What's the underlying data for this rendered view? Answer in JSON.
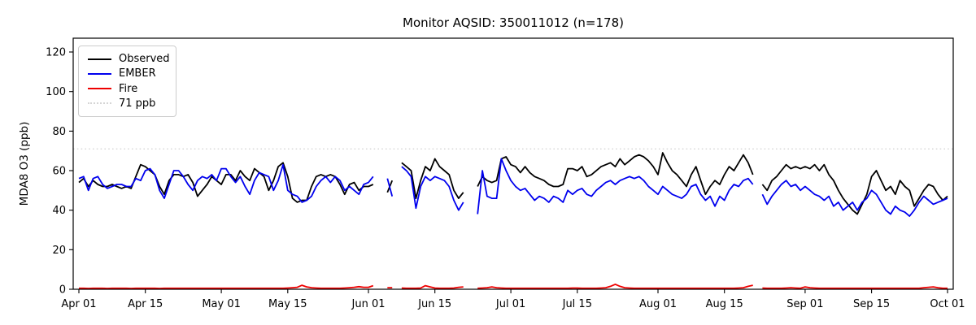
{
  "title": "Monitor AQSID: 350011012 (n=178)",
  "axes": {
    "ylabel": "MDA8 O3 (ppb)"
  },
  "legend": {
    "items": [
      {
        "label": "Observed",
        "color": "#000000",
        "style": "solid"
      },
      {
        "label": "EMBER",
        "color": "#0000ee",
        "style": "solid"
      },
      {
        "label": "Fire",
        "color": "#ee0000",
        "style": "solid"
      },
      {
        "label": "71 ppb",
        "color": "#d5d5d5",
        "style": "dotted"
      }
    ]
  },
  "chart_data": {
    "type": "line",
    "title": "Monitor AQSID: 350011012 (n=178)",
    "xlabel": "",
    "ylabel": "MDA8 O3 (ppb)",
    "x_start": "Apr 01",
    "x_end": "Oct 01",
    "x_unit": "day",
    "x_days_total": 183,
    "ylim": [
      0,
      127
    ],
    "y_ticks": [
      0,
      20,
      40,
      60,
      80,
      100,
      120
    ],
    "x_tick_labels": [
      "Apr 01",
      "Apr 15",
      "May 01",
      "May 15",
      "Jun 01",
      "Jun 15",
      "Jul 01",
      "Jul 15",
      "Aug 01",
      "Aug 15",
      "Sep 01",
      "Sep 15",
      "Oct 01"
    ],
    "x_tick_days": [
      0,
      14,
      30,
      44,
      61,
      75,
      91,
      105,
      122,
      136,
      153,
      167,
      183
    ],
    "threshold": {
      "label": "71 ppb",
      "value": 71,
      "color": "#d5d5d5",
      "style": "dotted"
    },
    "grid": false,
    "legend_position": "upper left",
    "series": [
      {
        "name": "Observed",
        "color": "#000000",
        "values": [
          54,
          56,
          52,
          55,
          53,
          52,
          52,
          53,
          52,
          51,
          52,
          51,
          57,
          63,
          62,
          60,
          58,
          52,
          48,
          55,
          58,
          58,
          57,
          58,
          54,
          47,
          50,
          53,
          57,
          55,
          53,
          58,
          58,
          55,
          60,
          57,
          55,
          61,
          59,
          57,
          50,
          55,
          62,
          64,
          57,
          46,
          44,
          45,
          45,
          52,
          57,
          58,
          57,
          58,
          57,
          53,
          48,
          53,
          54,
          50,
          52,
          52,
          53,
          null,
          null,
          49,
          55,
          null,
          64,
          62,
          60,
          46,
          55,
          62,
          60,
          66,
          62,
          60,
          58,
          50,
          46,
          49,
          null,
          null,
          52,
          57,
          55,
          54,
          55,
          66,
          67,
          63,
          62,
          59,
          62,
          59,
          57,
          56,
          55,
          53,
          52,
          52,
          53,
          61,
          61,
          60,
          62,
          57,
          58,
          60,
          62,
          63,
          64,
          62,
          66,
          63,
          65,
          67,
          68,
          67,
          65,
          62,
          58,
          69,
          64,
          60,
          58,
          55,
          52,
          58,
          62,
          55,
          48,
          52,
          55,
          53,
          58,
          62,
          60,
          64,
          68,
          64,
          58,
          null,
          53,
          50,
          55,
          57,
          60,
          63,
          61,
          62,
          61,
          62,
          61,
          63,
          60,
          63,
          58,
          55,
          50,
          46,
          43,
          40,
          38,
          43,
          48,
          57,
          60,
          55,
          50,
          52,
          48,
          55,
          52,
          50,
          42,
          46,
          50,
          53,
          52,
          48,
          45,
          47
        ]
      },
      {
        "name": "EMBER",
        "color": "#0000ee",
        "values": [
          56,
          57,
          50,
          56,
          57,
          53,
          51,
          52,
          53,
          53,
          52,
          52,
          56,
          55,
          60,
          61,
          58,
          50,
          46,
          53,
          60,
          60,
          57,
          53,
          50,
          55,
          57,
          56,
          58,
          55,
          61,
          61,
          57,
          54,
          57,
          52,
          48,
          55,
          59,
          58,
          57,
          50,
          55,
          63,
          50,
          48,
          47,
          44,
          45,
          47,
          52,
          55,
          57,
          54,
          57,
          55,
          50,
          52,
          50,
          48,
          53,
          54,
          57,
          null,
          null,
          56,
          47,
          null,
          62,
          60,
          57,
          41,
          52,
          57,
          55,
          57,
          56,
          55,
          52,
          45,
          40,
          44,
          null,
          null,
          38,
          60,
          47,
          46,
          46,
          66,
          60,
          55,
          52,
          50,
          51,
          48,
          45,
          47,
          46,
          44,
          47,
          46,
          44,
          50,
          48,
          50,
          51,
          48,
          47,
          50,
          52,
          54,
          55,
          53,
          55,
          56,
          57,
          56,
          57,
          55,
          52,
          50,
          48,
          52,
          50,
          48,
          47,
          46,
          48,
          52,
          53,
          48,
          45,
          47,
          42,
          47,
          45,
          50,
          53,
          52,
          55,
          56,
          53,
          null,
          48,
          43,
          47,
          50,
          53,
          55,
          52,
          53,
          50,
          52,
          50,
          48,
          47,
          45,
          47,
          42,
          44,
          40,
          42,
          44,
          40,
          44,
          46,
          50,
          48,
          44,
          40,
          38,
          42,
          40,
          39,
          37,
          40,
          44,
          47,
          45,
          43,
          44,
          45,
          46
        ]
      },
      {
        "name": "Fire",
        "color": "#ee0000",
        "values": [
          0.5,
          0.5,
          0.4,
          0.5,
          0.5,
          0.5,
          0.4,
          0.5,
          0.5,
          0.5,
          0.5,
          0.4,
          0.5,
          0.5,
          0.5,
          0.5,
          0.5,
          0.4,
          0.5,
          0.5,
          0.5,
          0.5,
          0.5,
          0.5,
          0.5,
          0.5,
          0.5,
          0.5,
          0.5,
          0.5,
          0.5,
          0.5,
          0.5,
          0.5,
          0.5,
          0.5,
          0.5,
          0.5,
          0.5,
          0.5,
          0.5,
          0.5,
          0.5,
          0.5,
          0.6,
          0.8,
          1.0,
          2.0,
          1.2,
          0.8,
          0.6,
          0.5,
          0.5,
          0.5,
          0.5,
          0.5,
          0.6,
          0.8,
          1.0,
          1.3,
          1.0,
          1.0,
          1.8,
          null,
          null,
          0.8,
          0.8,
          null,
          0.6,
          0.5,
          0.5,
          0.5,
          0.6,
          1.8,
          1.2,
          0.6,
          0.5,
          0.5,
          0.5,
          0.6,
          1.0,
          1.2,
          null,
          null,
          0.5,
          0.6,
          0.8,
          1.2,
          0.8,
          0.6,
          0.5,
          0.5,
          0.5,
          0.5,
          0.5,
          0.5,
          0.5,
          0.5,
          0.5,
          0.5,
          0.5,
          0.5,
          0.5,
          0.5,
          0.6,
          0.6,
          0.5,
          0.5,
          0.5,
          0.5,
          0.6,
          0.8,
          1.5,
          2.5,
          1.5,
          0.8,
          0.6,
          0.5,
          0.5,
          0.5,
          0.5,
          0.5,
          0.5,
          0.5,
          0.5,
          0.5,
          0.5,
          0.5,
          0.5,
          0.5,
          0.5,
          0.5,
          0.5,
          0.5,
          0.5,
          0.5,
          0.5,
          0.5,
          0.5,
          0.6,
          0.8,
          1.5,
          2.0,
          null,
          0.6,
          0.5,
          0.5,
          0.5,
          0.5,
          0.6,
          0.8,
          0.6,
          0.5,
          1.2,
          0.8,
          0.6,
          0.5,
          0.5,
          0.5,
          0.5,
          0.5,
          0.5,
          0.5,
          0.5,
          0.5,
          0.5,
          0.5,
          0.5,
          0.5,
          0.5,
          0.5,
          0.5,
          0.5,
          0.5,
          0.5,
          0.5,
          0.5,
          0.5,
          0.8,
          1.0,
          1.2,
          0.8,
          0.5,
          0.5
        ]
      }
    ]
  }
}
